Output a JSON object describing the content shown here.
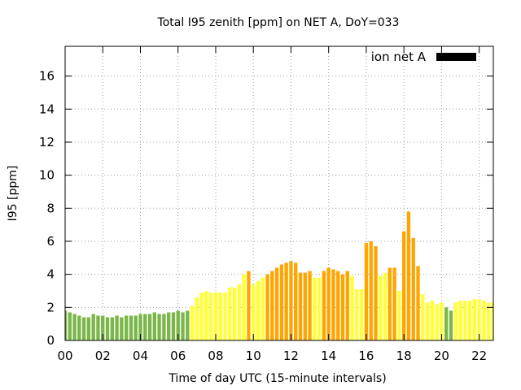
{
  "chart_data": {
    "type": "bar",
    "title": "Total I95 zenith [ppm] on NET A, DoY=033",
    "xlabel": "Time of day UTC (15-minute intervals)",
    "ylabel": "I95 [ppm]",
    "xlim": [
      0,
      22.75
    ],
    "ylim": [
      0,
      17.8
    ],
    "interval_hours": 0.25,
    "bar_width_fraction": 0.75,
    "x_ticks": [
      0,
      2,
      4,
      6,
      8,
      10,
      12,
      14,
      16,
      18,
      20,
      22
    ],
    "x_tick_labels": [
      "00",
      "02",
      "04",
      "06",
      "08",
      "10",
      "12",
      "14",
      "16",
      "18",
      "20",
      "22"
    ],
    "y_ticks": [
      0,
      2,
      4,
      6,
      8,
      10,
      12,
      14,
      16
    ],
    "y_tick_labels": [
      "0",
      "2",
      "4",
      "6",
      "8",
      "10",
      "12",
      "14",
      "16"
    ],
    "grid": true,
    "legend": {
      "label": "ion net A",
      "position": "top-right",
      "color": "#000000"
    },
    "colors": {
      "green": "#7ab648",
      "yellow": "#ffff33",
      "orange": "#ffa500"
    },
    "x": [
      0,
      0.25,
      0.5,
      0.75,
      1,
      1.25,
      1.5,
      1.75,
      2,
      2.25,
      2.5,
      2.75,
      3,
      3.25,
      3.5,
      3.75,
      4,
      4.25,
      4.5,
      4.75,
      5,
      5.25,
      5.5,
      5.75,
      6,
      6.25,
      6.5,
      6.75,
      7,
      7.25,
      7.5,
      7.75,
      8,
      8.25,
      8.5,
      8.75,
      9,
      9.25,
      9.5,
      9.75,
      10,
      10.25,
      10.5,
      10.75,
      11,
      11.25,
      11.5,
      11.75,
      12,
      12.25,
      12.5,
      12.75,
      13,
      13.25,
      13.5,
      13.75,
      14,
      14.25,
      14.5,
      14.75,
      15,
      15.25,
      15.5,
      15.75,
      16,
      16.25,
      16.5,
      16.75,
      17,
      17.25,
      17.5,
      17.75,
      18,
      18.25,
      18.5,
      18.75,
      19,
      19.25,
      19.5,
      19.75,
      20,
      20.25,
      20.5,
      20.75,
      21,
      21.25,
      21.5,
      21.75,
      22,
      22.25,
      22.5,
      22.75
    ],
    "values": [
      1.8,
      1.7,
      1.6,
      1.5,
      1.4,
      1.4,
      1.6,
      1.5,
      1.5,
      1.4,
      1.4,
      1.5,
      1.4,
      1.5,
      1.5,
      1.5,
      1.6,
      1.6,
      1.6,
      1.7,
      1.6,
      1.6,
      1.7,
      1.7,
      1.8,
      1.7,
      1.8,
      2.1,
      2.6,
      2.9,
      3.0,
      2.9,
      2.9,
      2.9,
      2.9,
      3.2,
      3.2,
      3.4,
      4.0,
      4.2,
      3.4,
      3.6,
      3.8,
      4.0,
      4.2,
      4.4,
      4.6,
      4.7,
      4.8,
      4.7,
      4.1,
      4.1,
      4.2,
      3.8,
      3.8,
      4.2,
      4.4,
      4.3,
      4.2,
      4.0,
      4.2,
      3.9,
      3.1,
      3.1,
      5.9,
      6.0,
      5.7,
      3.9,
      4.1,
      4.4,
      4.4,
      3.0,
      6.6,
      7.8,
      6.2,
      4.5,
      2.8,
      2.3,
      2.4,
      2.2,
      2.3,
      2.0,
      1.8,
      2.3,
      2.4,
      2.4,
      2.4,
      2.5,
      2.5,
      2.4,
      2.3,
      2.3
    ],
    "bar_colors": [
      "green",
      "green",
      "green",
      "green",
      "green",
      "green",
      "green",
      "green",
      "green",
      "green",
      "green",
      "green",
      "green",
      "green",
      "green",
      "green",
      "green",
      "green",
      "green",
      "green",
      "green",
      "green",
      "green",
      "green",
      "green",
      "green",
      "green",
      "yellow",
      "yellow",
      "yellow",
      "yellow",
      "yellow",
      "yellow",
      "yellow",
      "yellow",
      "yellow",
      "yellow",
      "yellow",
      "yellow",
      "orange",
      "yellow",
      "yellow",
      "yellow",
      "orange",
      "orange",
      "orange",
      "orange",
      "orange",
      "orange",
      "orange",
      "orange",
      "orange",
      "orange",
      "yellow",
      "yellow",
      "orange",
      "orange",
      "orange",
      "orange",
      "orange",
      "orange",
      "yellow",
      "yellow",
      "yellow",
      "orange",
      "orange",
      "orange",
      "yellow",
      "yellow",
      "orange",
      "orange",
      "yellow",
      "orange",
      "orange",
      "orange",
      "orange",
      "yellow",
      "yellow",
      "yellow",
      "yellow",
      "yellow",
      "green",
      "green",
      "yellow",
      "yellow",
      "yellow",
      "yellow",
      "yellow",
      "yellow",
      "yellow",
      "yellow",
      "yellow"
    ]
  }
}
